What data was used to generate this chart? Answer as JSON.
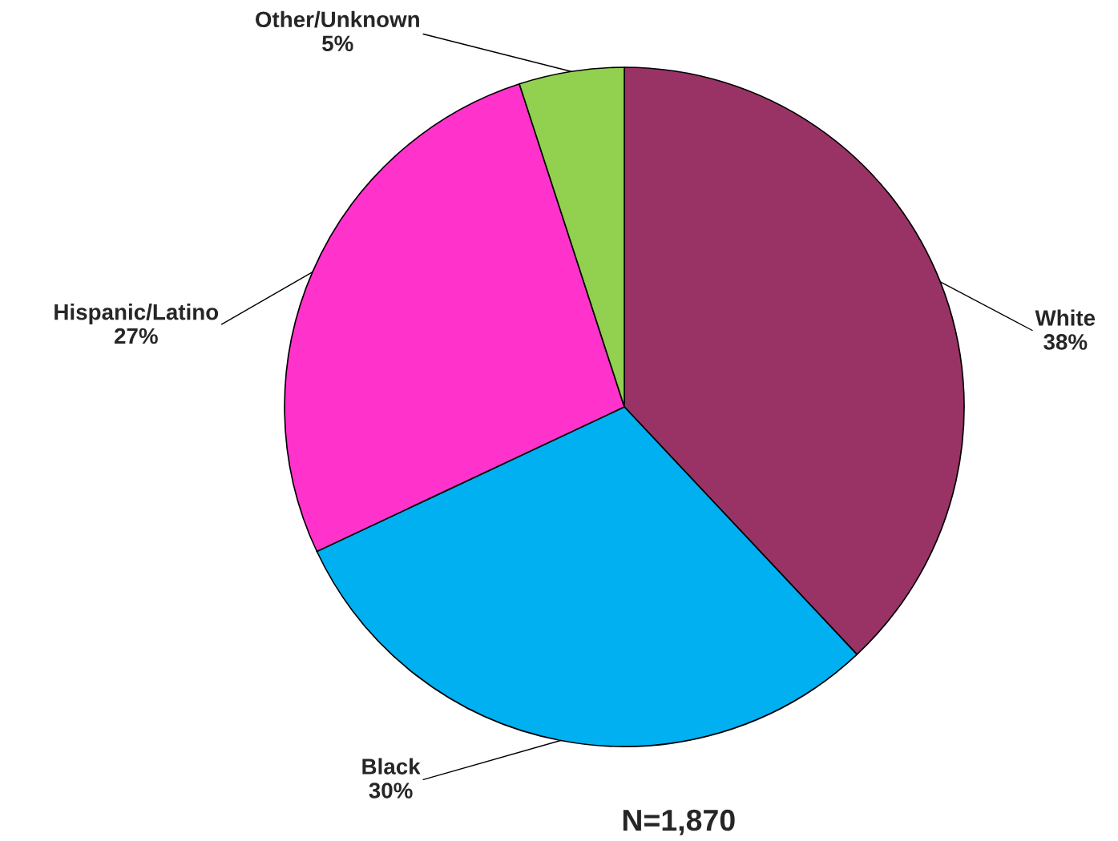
{
  "chart_data": {
    "type": "pie",
    "categories": [
      "White",
      "Black",
      "Hispanic/Latino",
      "Other/Unknown"
    ],
    "values": [
      38,
      30,
      27,
      5
    ],
    "value_labels": [
      "38%",
      "30%",
      "27%",
      "5%"
    ],
    "colors": [
      "#993366",
      "#00b0f0",
      "#ff33cc",
      "#92d050"
    ],
    "annotations": [
      "N=1,870"
    ]
  }
}
